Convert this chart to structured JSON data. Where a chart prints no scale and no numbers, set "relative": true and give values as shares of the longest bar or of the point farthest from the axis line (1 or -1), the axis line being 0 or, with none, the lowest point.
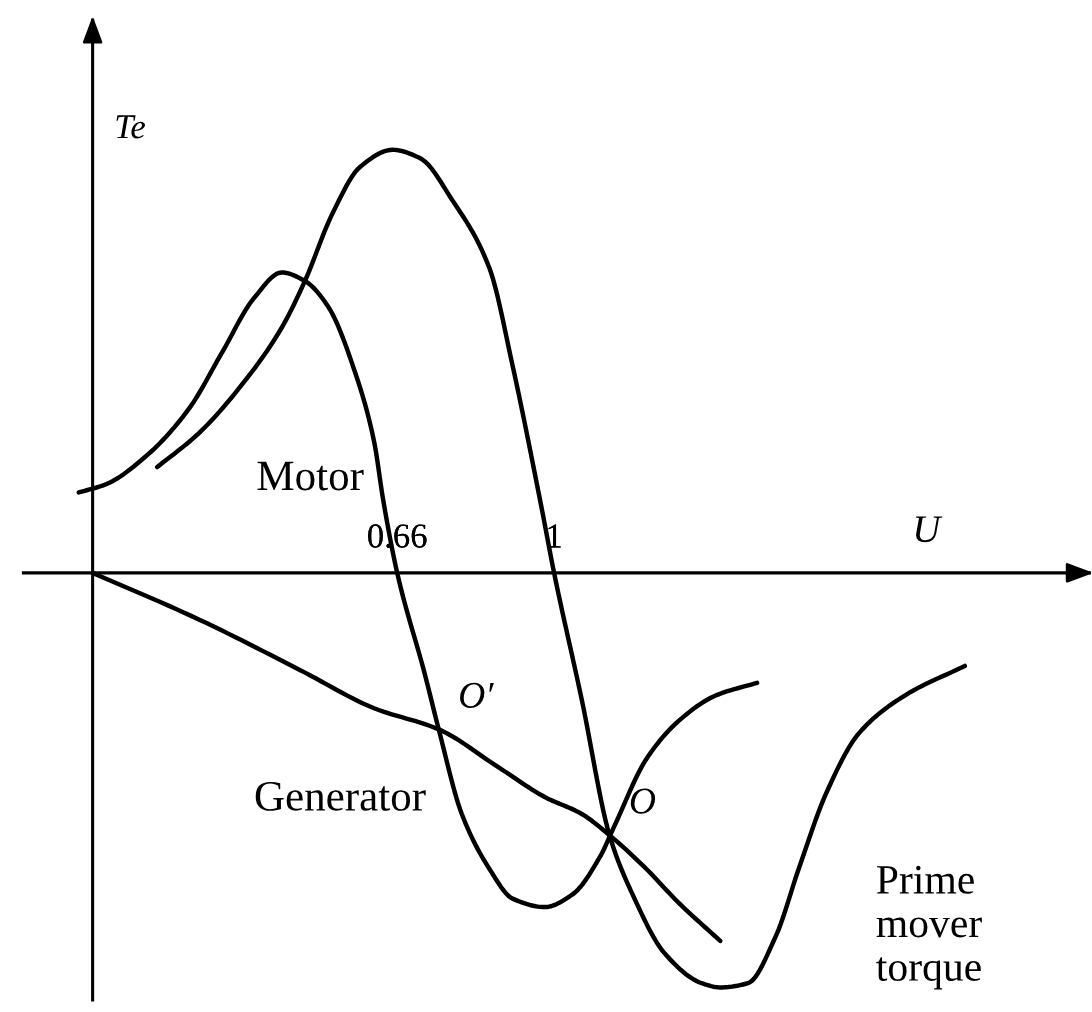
{
  "chart_data": {
    "type": "line",
    "xlabel": "U",
    "ylabel": "Te",
    "relative": true,
    "xlim": [
      -0.15,
      2.16
    ],
    "xticks": [
      0.66,
      1
    ],
    "annotations": [
      "Motor",
      "Generator",
      {
        "text": "O′",
        "x": 0.75,
        "y": -0.37
      },
      {
        "text": "O",
        "x": 1.12,
        "y": -0.62
      }
    ],
    "series": [
      {
        "color": "#000000",
        "x": [
          0.14,
          0.23,
          0.32,
          0.41,
          0.46,
          0.52,
          0.58,
          0.65,
          0.71,
          0.78,
          0.86,
          0.91,
          0.97,
          1.0,
          1.06,
          1.12,
          1.17,
          1.24,
          1.32,
          1.36,
          1.42,
          1.48,
          1.53,
          1.59,
          1.66,
          1.76,
          1.89
        ],
        "values": [
          0.25,
          0.33,
          0.44,
          0.58,
          0.69,
          0.85,
          0.96,
          1.0,
          0.98,
          0.88,
          0.72,
          0.49,
          0.17,
          0,
          -0.3,
          -0.62,
          -0.76,
          -0.9,
          -0.97,
          -0.98,
          -0.97,
          -0.86,
          -0.7,
          -0.52,
          -0.38,
          -0.29,
          -0.22
        ]
      },
      {
        "color": "#000000",
        "x": [
          -0.03,
          0.03,
          0.12,
          0.21,
          0.28,
          0.35,
          0.41,
          0.46,
          0.51,
          0.57,
          0.61,
          0.63,
          0.66,
          0.72,
          0.75,
          0.8,
          0.86,
          0.91,
          0.98,
          1.04,
          1.1,
          1.13,
          1.2,
          1.27,
          1.35,
          1.44
        ],
        "values": [
          0.19,
          0.21,
          0.28,
          0.39,
          0.52,
          0.65,
          0.71,
          0.69,
          0.63,
          0.47,
          0.31,
          0.17,
          0,
          -0.24,
          -0.37,
          -0.57,
          -0.7,
          -0.77,
          -0.79,
          -0.76,
          -0.67,
          -0.6,
          -0.44,
          -0.35,
          -0.29,
          -0.26
        ]
      },
      {
        "name": "Prime mover torque",
        "color": "#000000",
        "x": [
          0,
          0.23,
          0.45,
          0.61,
          0.75,
          0.88,
          0.98,
          1.06,
          1.12,
          1.2,
          1.27,
          1.36
        ],
        "values": [
          0,
          -0.11,
          -0.23,
          -0.32,
          -0.37,
          -0.46,
          -0.53,
          -0.57,
          -0.62,
          -0.7,
          -0.78,
          -0.87
        ]
      }
    ]
  }
}
